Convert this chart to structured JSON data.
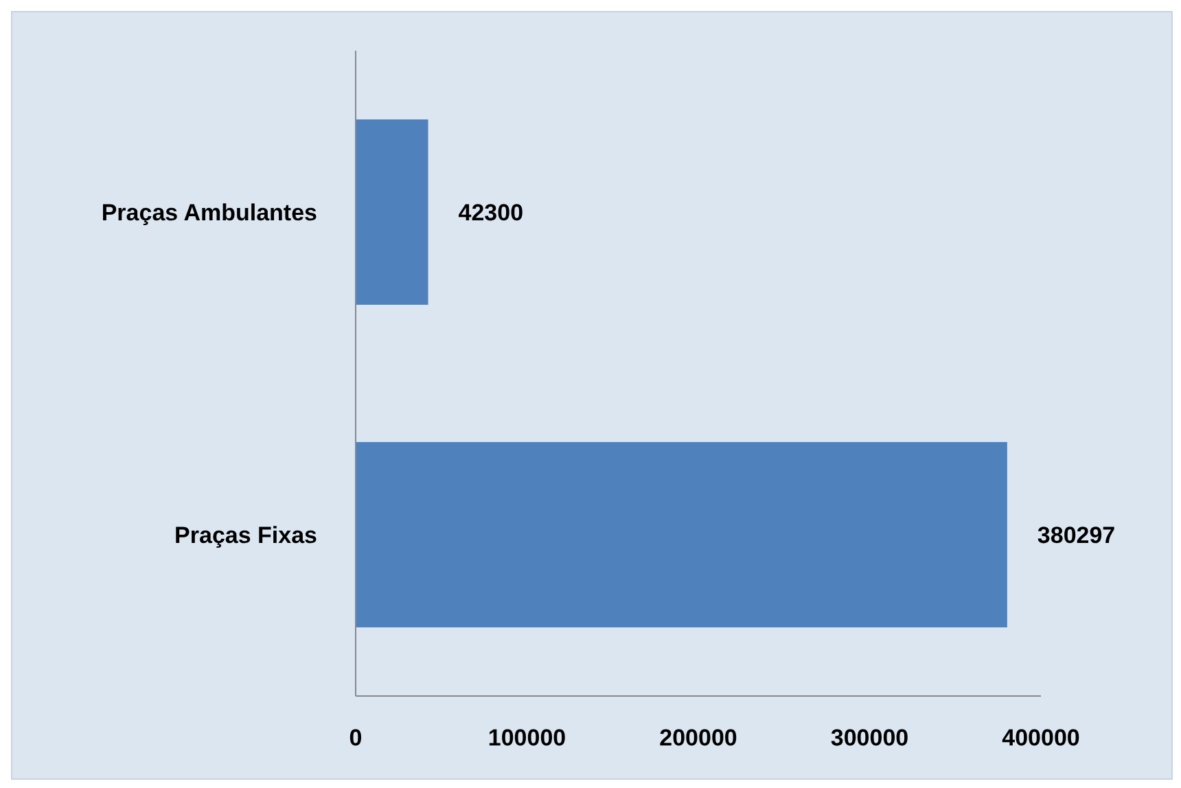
{
  "chart_data": {
    "type": "bar",
    "orientation": "horizontal",
    "categories": [
      "Praças Ambulantes",
      "Praças Fixas"
    ],
    "values": [
      42300,
      380297
    ],
    "color": "#4f81bd",
    "xlim": [
      0,
      400000
    ],
    "xticks": [
      0,
      100000,
      200000,
      300000,
      400000
    ],
    "data_labels": true,
    "grid": false,
    "legend": false
  }
}
